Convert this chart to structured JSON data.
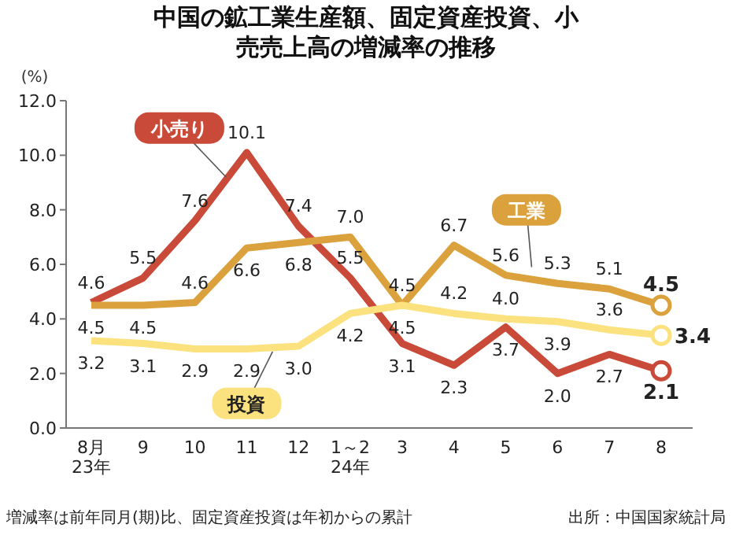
{
  "chart_data": {
    "type": "line",
    "title": "中国の鉱工業生産額、固定資産投資、小売売上高の増減率の推移",
    "ylabel": "(%)",
    "categories": [
      "8月\n23年",
      "9",
      "10",
      "11",
      "12",
      "1～2\n24年",
      "3",
      "4",
      "5",
      "6",
      "7",
      "8"
    ],
    "series": [
      {
        "name": "小売り",
        "color": "#c94a38",
        "values": [
          4.6,
          5.5,
          7.6,
          10.1,
          7.4,
          5.5,
          3.1,
          2.3,
          3.7,
          2.0,
          2.7,
          2.1
        ],
        "value_labels": [
          "4.6",
          "5.5",
          "7.6",
          "10.1",
          "7.4",
          "5.5",
          "3.1",
          "2.3",
          "3.7",
          "2.0",
          "2.7",
          "2.1"
        ]
      },
      {
        "name": "工業",
        "color": "#dba13c",
        "values": [
          4.5,
          4.5,
          4.6,
          6.6,
          6.8,
          7.0,
          4.5,
          6.7,
          5.6,
          5.3,
          5.1,
          4.5
        ],
        "value_labels": [
          "4.5",
          "4.5",
          "4.6",
          "6.6",
          "6.8",
          "7.0",
          "4.5",
          "6.7",
          "5.6",
          "5.3",
          "5.1",
          "4.5"
        ]
      },
      {
        "name": "投資",
        "color": "#fbe27e",
        "values": [
          3.2,
          3.1,
          2.9,
          2.9,
          3.0,
          4.2,
          4.5,
          4.2,
          4.0,
          3.9,
          3.6,
          3.4
        ],
        "value_labels": [
          "3.2",
          "3.1",
          "2.9",
          "2.9",
          "3.0",
          "4.2",
          "4.5",
          "4.2",
          "4.0",
          "3.9",
          "3.6",
          "3.4"
        ]
      }
    ],
    "ylim": [
      0,
      12
    ],
    "yticks": [
      {
        "value": 0,
        "label": "0.0"
      },
      {
        "value": 2,
        "label": "2.0"
      },
      {
        "value": 4,
        "label": "4.0"
      },
      {
        "value": 6,
        "label": "6.0"
      },
      {
        "value": 8,
        "label": "8.0"
      },
      {
        "value": 10,
        "label": "10.0"
      },
      {
        "value": 12,
        "label": "12.0"
      }
    ],
    "grid": false,
    "annotations": [
      "増減率は前年同月(期)比、固定資産投資は年初からの累計",
      "出所：中国国家統計局"
    ]
  }
}
